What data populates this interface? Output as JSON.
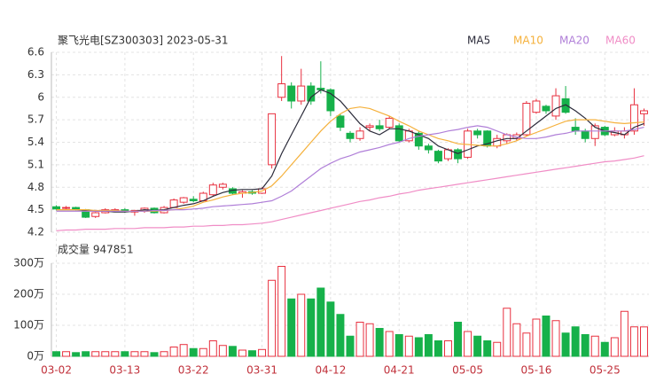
{
  "chart_data": {
    "type": "candlestick",
    "title": "聚飞光电[SZ300303] 2023-05-31",
    "up_color": "#e8303f",
    "down_color": "#16b14a",
    "grid": true,
    "categories": [
      "03-02",
      null,
      null,
      null,
      null,
      null,
      null,
      "03-13",
      null,
      null,
      null,
      null,
      null,
      null,
      "03-22",
      null,
      null,
      null,
      null,
      null,
      null,
      "03-31",
      null,
      null,
      null,
      null,
      null,
      null,
      "04-12",
      null,
      null,
      null,
      null,
      null,
      null,
      "04-21",
      null,
      null,
      null,
      null,
      null,
      null,
      "05-05",
      null,
      null,
      null,
      null,
      null,
      null,
      "05-16",
      null,
      null,
      null,
      null,
      null,
      null,
      "05-25",
      null,
      null,
      null,
      null
    ],
    "open": [
      4.54,
      4.52,
      4.53,
      4.5,
      4.41,
      4.46,
      4.49,
      4.5,
      4.47,
      4.48,
      4.52,
      4.46,
      4.53,
      4.6,
      4.64,
      4.62,
      4.7,
      4.8,
      4.78,
      4.72,
      4.74,
      4.72,
      5.1,
      6.0,
      6.15,
      5.95,
      6.15,
      6.12,
      6.1,
      5.75,
      5.52,
      5.45,
      5.6,
      5.62,
      5.6,
      5.62,
      5.42,
      5.52,
      5.35,
      5.28,
      5.18,
      5.3,
      5.2,
      5.55,
      5.55,
      5.35,
      5.42,
      5.45,
      5.5,
      5.8,
      5.88,
      5.75,
      5.98,
      5.6,
      5.55,
      5.45,
      5.6,
      5.5,
      5.5,
      5.55,
      5.78
    ],
    "high": [
      4.56,
      4.55,
      4.54,
      4.51,
      4.47,
      4.52,
      4.52,
      4.52,
      4.5,
      4.53,
      4.53,
      4.55,
      4.65,
      4.67,
      4.68,
      4.74,
      4.86,
      4.86,
      4.8,
      4.76,
      4.76,
      4.8,
      5.78,
      6.55,
      6.2,
      6.38,
      6.2,
      6.48,
      6.12,
      5.78,
      5.55,
      5.6,
      5.65,
      5.7,
      5.75,
      5.65,
      5.58,
      5.55,
      5.38,
      5.3,
      5.32,
      5.32,
      5.58,
      5.58,
      5.56,
      5.5,
      5.52,
      5.53,
      5.95,
      5.98,
      5.9,
      6.12,
      6.15,
      5.72,
      5.58,
      5.65,
      5.62,
      5.6,
      5.6,
      6.12,
      5.85
    ],
    "low": [
      4.49,
      4.5,
      4.49,
      4.39,
      4.39,
      4.45,
      4.47,
      4.46,
      4.42,
      4.46,
      4.45,
      4.45,
      4.52,
      4.58,
      4.6,
      4.61,
      4.68,
      4.77,
      4.7,
      4.66,
      4.7,
      4.71,
      5.05,
      5.95,
      5.85,
      5.9,
      5.9,
      6.05,
      5.75,
      5.55,
      5.4,
      5.42,
      5.55,
      5.55,
      5.58,
      5.4,
      5.4,
      5.3,
      5.25,
      5.12,
      5.15,
      5.12,
      5.18,
      5.45,
      5.33,
      5.32,
      5.38,
      5.42,
      5.48,
      5.78,
      5.78,
      5.7,
      5.78,
      5.5,
      5.4,
      5.35,
      5.48,
      5.48,
      5.45,
      5.5,
      5.62
    ],
    "close": [
      4.51,
      4.53,
      4.51,
      4.4,
      4.46,
      4.5,
      4.5,
      4.48,
      4.49,
      4.52,
      4.46,
      4.53,
      4.63,
      4.66,
      4.62,
      4.72,
      4.83,
      4.84,
      4.72,
      4.74,
      4.72,
      4.78,
      5.78,
      6.18,
      5.95,
      6.15,
      5.95,
      6.1,
      5.82,
      5.6,
      5.45,
      5.55,
      5.62,
      5.58,
      5.72,
      5.42,
      5.55,
      5.35,
      5.3,
      5.15,
      5.3,
      5.18,
      5.55,
      5.5,
      5.35,
      5.45,
      5.5,
      5.5,
      5.92,
      5.95,
      5.82,
      6.02,
      5.8,
      5.55,
      5.45,
      5.62,
      5.5,
      5.55,
      5.55,
      5.9,
      5.82
    ],
    "ylim": [
      4.2,
      6.6
    ],
    "yticks": [
      4.2,
      4.5,
      4.8,
      5.1,
      5.4,
      5.7,
      6,
      6.3,
      6.6
    ],
    "ma_series": [
      {
        "name": "MA5",
        "color": "#2b2b3a",
        "values": [
          4.5,
          4.5,
          4.5,
          4.49,
          4.48,
          4.48,
          4.47,
          4.47,
          4.48,
          4.5,
          4.49,
          4.5,
          4.53,
          4.56,
          4.58,
          4.62,
          4.68,
          4.73,
          4.76,
          4.77,
          4.77,
          4.78,
          4.95,
          5.25,
          5.5,
          5.75,
          6.0,
          6.1,
          6.05,
          5.95,
          5.8,
          5.65,
          5.55,
          5.5,
          5.58,
          5.58,
          5.55,
          5.5,
          5.45,
          5.35,
          5.3,
          5.25,
          5.3,
          5.35,
          5.38,
          5.42,
          5.45,
          5.45,
          5.55,
          5.65,
          5.75,
          5.85,
          5.9,
          5.82,
          5.72,
          5.6,
          5.55,
          5.53,
          5.5,
          5.6,
          5.65
        ]
      },
      {
        "name": "MA10",
        "color": "#f5b13c",
        "values": [
          4.5,
          4.5,
          4.5,
          4.5,
          4.49,
          4.49,
          4.49,
          4.48,
          4.48,
          4.48,
          4.48,
          4.49,
          4.5,
          4.52,
          4.55,
          4.6,
          4.63,
          4.67,
          4.7,
          4.72,
          4.73,
          4.75,
          4.82,
          4.95,
          5.1,
          5.25,
          5.4,
          5.55,
          5.68,
          5.78,
          5.85,
          5.87,
          5.85,
          5.8,
          5.75,
          5.68,
          5.62,
          5.55,
          5.5,
          5.45,
          5.42,
          5.38,
          5.37,
          5.36,
          5.35,
          5.35,
          5.38,
          5.42,
          5.48,
          5.53,
          5.58,
          5.63,
          5.68,
          5.7,
          5.7,
          5.7,
          5.68,
          5.66,
          5.65,
          5.66,
          5.67
        ]
      },
      {
        "name": "MA20",
        "color": "#b07fd8",
        "values": [
          4.48,
          4.48,
          4.48,
          4.48,
          4.48,
          4.48,
          4.48,
          4.48,
          4.48,
          4.48,
          4.49,
          4.49,
          4.5,
          4.5,
          4.51,
          4.52,
          4.54,
          4.55,
          4.56,
          4.57,
          4.58,
          4.6,
          4.62,
          4.68,
          4.75,
          4.85,
          4.95,
          5.05,
          5.12,
          5.18,
          5.22,
          5.27,
          5.3,
          5.33,
          5.37,
          5.4,
          5.45,
          5.48,
          5.5,
          5.52,
          5.55,
          5.57,
          5.6,
          5.62,
          5.6,
          5.55,
          5.5,
          5.47,
          5.45,
          5.45,
          5.47,
          5.5,
          5.52,
          5.55,
          5.55,
          5.55,
          5.55,
          5.55,
          5.55,
          5.57,
          5.6
        ]
      },
      {
        "name": "MA60",
        "color": "#f08dc6",
        "values": [
          4.22,
          4.23,
          4.23,
          4.24,
          4.24,
          4.24,
          4.25,
          4.25,
          4.25,
          4.26,
          4.26,
          4.26,
          4.27,
          4.27,
          4.28,
          4.28,
          4.29,
          4.29,
          4.3,
          4.3,
          4.31,
          4.32,
          4.34,
          4.37,
          4.4,
          4.43,
          4.46,
          4.49,
          4.52,
          4.55,
          4.58,
          4.61,
          4.63,
          4.66,
          4.68,
          4.71,
          4.73,
          4.76,
          4.78,
          4.8,
          4.82,
          4.84,
          4.86,
          4.88,
          4.9,
          4.92,
          4.94,
          4.96,
          4.98,
          5.0,
          5.02,
          5.04,
          5.06,
          5.08,
          5.1,
          5.12,
          5.14,
          5.15,
          5.17,
          5.19,
          5.22
        ]
      }
    ],
    "volume": {
      "label": "成交量 947851",
      "values": [
        150000,
        150000,
        120000,
        150000,
        150000,
        150000,
        150000,
        150000,
        150000,
        150000,
        120000,
        150000,
        300000,
        380000,
        250000,
        250000,
        500000,
        350000,
        320000,
        200000,
        180000,
        220000,
        2450000,
        2900000,
        1850000,
        2000000,
        1850000,
        2200000,
        1750000,
        1350000,
        650000,
        1100000,
        1050000,
        900000,
        800000,
        700000,
        650000,
        600000,
        700000,
        500000,
        500000,
        1100000,
        800000,
        650000,
        500000,
        450000,
        1550000,
        1050000,
        750000,
        1200000,
        1300000,
        1150000,
        750000,
        950000,
        700000,
        650000,
        450000,
        600000,
        1450000,
        950000,
        947851
      ],
      "ylim": [
        0,
        3000000
      ],
      "yticks": [
        {
          "value": 0,
          "label": "0万"
        },
        {
          "value": 1000000,
          "label": "100万"
        },
        {
          "value": 2000000,
          "label": "200万"
        },
        {
          "value": 3000000,
          "label": "300万"
        }
      ]
    }
  }
}
